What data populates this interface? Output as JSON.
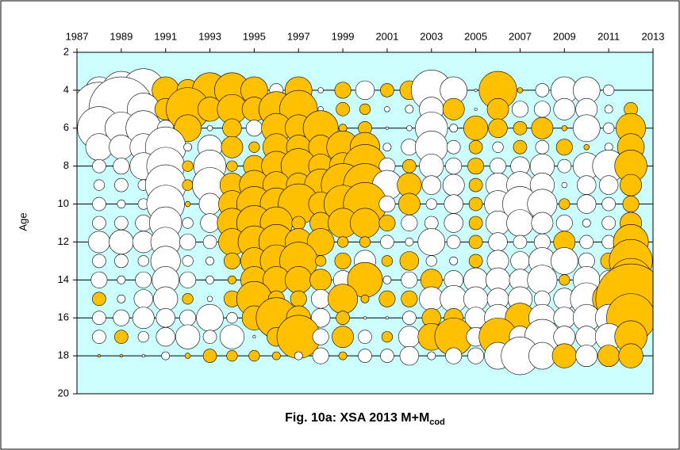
{
  "chart_data": {
    "type": "bubble",
    "title": "Fig. 10a: XSA 2013 M+M",
    "title_subscript": "cod",
    "y_label": "Age",
    "x": [
      1988,
      1989,
      1990,
      1991,
      1992,
      1993,
      1994,
      1995,
      1996,
      1997,
      1998,
      1999,
      2000,
      2001,
      2002,
      2003,
      2004,
      2005,
      2006,
      2007,
      2008,
      2009,
      2010,
      2011,
      2012
    ],
    "y": [
      4,
      5,
      6,
      7,
      8,
      9,
      10,
      11,
      12,
      13,
      14,
      15,
      16,
      17,
      18
    ],
    "values": [
      [
        1.0,
        1.4,
        1.6,
        -1.0,
        -0.8,
        -1.3,
        -1.3,
        -1.0,
        0.5,
        -1.0,
        0.2,
        -0.6,
        0.7,
        -0.5,
        -0.7,
        1.5,
        1.0,
        0.1,
        -1.4,
        -0.2,
        0.5,
        1.0,
        1.0,
        0.4,
        0.0
      ],
      [
        2.0,
        2.4,
        1.2,
        -0.8,
        -1.6,
        -0.9,
        -1.1,
        -0.9,
        -1.3,
        -1.4,
        0.2,
        -0.5,
        -0.4,
        0.2,
        0.3,
        0.9,
        -0.8,
        0.1,
        -0.8,
        0.6,
        0.6,
        0.8,
        0.8,
        0.3,
        -0.5
      ],
      [
        1.6,
        1.2,
        1.3,
        0.6,
        -1.0,
        0.2,
        -0.7,
        0.6,
        -1.1,
        -1.0,
        -1.3,
        -0.3,
        -0.5,
        0.1,
        0.2,
        1.2,
        0.3,
        -0.9,
        -0.7,
        -0.5,
        -0.8,
        -0.2,
        1.0,
        0.4,
        -1.1
      ],
      [
        1.0,
        0.9,
        1.0,
        1.5,
        0.3,
        0.9,
        -0.8,
        -0.4,
        -1.0,
        -0.9,
        -0.9,
        -1.2,
        -1.1,
        0.3,
        0.6,
        1.2,
        0.5,
        -0.5,
        0.4,
        -0.5,
        0.5,
        -0.6,
        -0.2,
        0.3,
        -1.0
      ],
      [
        0.5,
        0.6,
        1.0,
        1.4,
        -0.4,
        1.2,
        -0.4,
        -0.8,
        -1.1,
        -1.3,
        -0.9,
        -1.0,
        -1.6,
        0.6,
        -0.5,
        0.9,
        0.6,
        -0.6,
        0.6,
        0.7,
        0.9,
        0.5,
        1.0,
        1.2,
        -1.2
      ],
      [
        0.4,
        0.5,
        0.4,
        1.5,
        -0.4,
        1.3,
        -0.9,
        -1.1,
        -1.0,
        -0.9,
        -1.2,
        -1.6,
        -1.6,
        1.1,
        -0.9,
        0.7,
        0.8,
        -0.5,
        0.9,
        1.0,
        0.9,
        0.2,
        0.7,
        0.7,
        -0.8
      ],
      [
        0.5,
        0.3,
        0.4,
        1.4,
        -0.2,
        0.8,
        -1.0,
        -1.3,
        -1.2,
        -1.5,
        -0.9,
        -1.4,
        -1.6,
        0.6,
        -0.8,
        0.4,
        0.7,
        -0.5,
        1.0,
        1.3,
        1.1,
        -0.4,
        0.7,
        0.5,
        -0.6
      ],
      [
        0.5,
        0.5,
        0.6,
        1.2,
        0.4,
        0.7,
        -1.1,
        -1.3,
        -1.2,
        -0.5,
        -0.8,
        -1.1,
        -1.1,
        -0.6,
        0.6,
        0.5,
        0.7,
        -0.5,
        0.9,
        1.0,
        0.8,
        0.6,
        0.3,
        0.5,
        -0.8
      ],
      [
        0.8,
        0.9,
        0.8,
        1.1,
        0.6,
        0.5,
        -1.0,
        -1.2,
        -1.3,
        -1.0,
        -1.0,
        -0.4,
        -0.4,
        0.5,
        0.3,
        1.0,
        0.5,
        -0.5,
        0.7,
        0.5,
        0.6,
        -0.8,
        0.5,
        0.5,
        -1.3
      ],
      [
        0.5,
        0.5,
        0.4,
        1.1,
        0.4,
        0.3,
        -0.6,
        -1.0,
        -1.2,
        -1.4,
        -0.4,
        -0.6,
        0.8,
        -0.4,
        -0.7,
        0.4,
        0.3,
        -0.5,
        0.8,
        0.7,
        1.0,
        1.0,
        0.6,
        -0.6,
        -1.6
      ],
      [
        0.6,
        0.3,
        0.6,
        1.0,
        0.6,
        0.3,
        -0.3,
        -1.0,
        -1.0,
        -1.0,
        -0.8,
        0.7,
        -1.3,
        0.3,
        0.6,
        -0.8,
        0.7,
        0.9,
        0.9,
        0.8,
        1.1,
        -0.4,
        1.0,
        0.7,
        -1.6
      ],
      [
        -0.5,
        0.3,
        0.7,
        0.9,
        -0.4,
        0.2,
        -0.6,
        -1.3,
        -0.6,
        -0.6,
        0.7,
        -1.1,
        -0.3,
        -0.6,
        -0.6,
        0.9,
        1.0,
        0.9,
        0.8,
        0.9,
        0.6,
        0.8,
        1.2,
        -1.2,
        -2.6
      ],
      [
        0.5,
        0.6,
        0.8,
        0.7,
        0.6,
        1.0,
        0.4,
        -0.9,
        -1.5,
        -0.9,
        0.7,
        -0.5,
        0.1,
        0.1,
        0.5,
        -0.7,
        -0.7,
        0.8,
        1.0,
        -1.1,
        1.0,
        0.8,
        1.0,
        1.0,
        -1.8
      ],
      [
        0.5,
        -0.5,
        0.4,
        0.7,
        0.9,
        0.5,
        0.9,
        0.1,
        -0.7,
        -1.6,
        0.6,
        -0.8,
        0.5,
        -0.4,
        0.8,
        -1.0,
        -1.4,
        0.7,
        -1.4,
        0.8,
        1.3,
        0.8,
        0.8,
        1.0,
        -1.2
      ],
      [
        -0.1,
        -0.1,
        0.1,
        0.3,
        -0.2,
        -0.5,
        -0.4,
        -0.4,
        -0.3,
        0.3,
        0.6,
        -0.3,
        0.5,
        0.5,
        0.7,
        0.3,
        0.6,
        0.6,
        1.0,
        1.4,
        1.0,
        -0.9,
        0.8,
        -0.8,
        -0.9
      ]
    ],
    "positive_color": "#ffffff",
    "negative_color": "#ffc000",
    "plot_background": "#ccffff",
    "xlim": [
      1987,
      2013
    ],
    "xticks": [
      1987,
      1989,
      1991,
      1993,
      1995,
      1997,
      1999,
      2001,
      2003,
      2005,
      2007,
      2009,
      2011,
      2013
    ],
    "ylim": [
      20,
      2
    ],
    "yticks": [
      2,
      4,
      6,
      8,
      10,
      12,
      14,
      16,
      18,
      20
    ],
    "grid": true
  }
}
